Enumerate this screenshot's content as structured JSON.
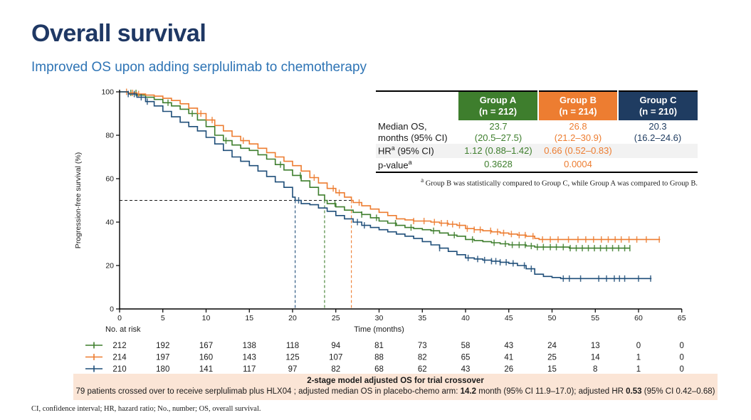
{
  "page": {
    "title": "Overall survival",
    "subtitle": "Improved OS upon adding serplulimab to chemotherapy",
    "abbrev_footnote": "CI, confidence interval; HR, hazard ratio; No., number; OS, overall survival."
  },
  "colors": {
    "title_navy": "#1F3864",
    "subtitle_blue": "#2E74B5",
    "group_a_green": "#3E7E2D",
    "group_b_orange": "#ED7D31",
    "group_c_navy_header": "#1F3C61",
    "group_c_curve_navy": "#1F4E79",
    "hr_row_bg": "#F2F2F2",
    "crossover_box_bg": "#FBE5D6"
  },
  "stats_table": {
    "marker": "a",
    "columns": [
      {
        "line1": "Group A",
        "line2": "(n = 212)"
      },
      {
        "line1": "Group B",
        "line2": "(n = 214)"
      },
      {
        "line1": "Group C",
        "line2": "(n = 210)"
      }
    ],
    "rows": {
      "median": {
        "label1": "Median OS,",
        "label2": "months (95% CI)",
        "values": [
          {
            "line1": "23.7",
            "line2": "(20.5–27.5)"
          },
          {
            "line1": "26.8",
            "line2": "(21.2–30.9)"
          },
          {
            "line1": "20.3",
            "line2": "(16.2–24.6)"
          }
        ]
      },
      "hr": {
        "label_pre": "HR",
        "label_post": " (95% CI)",
        "values": [
          "1.12 (0.88–1.42)",
          "0.66 (0.52–0.83)",
          ""
        ]
      },
      "p": {
        "label_pre": "p-value",
        "values": [
          "0.3628",
          "0.0004",
          ""
        ]
      }
    },
    "footnote": " Group B was statistically compared to Group C, while Group A was compared to Group B."
  },
  "crossover": {
    "title": "2-stage model adjusted OS for trial crossover",
    "seg1": "79 patients crossed over to receive serplulimab plus HLX04 ; adjusted median OS in placebo-chemo arm: ",
    "seg2": "14.2",
    "seg3": " month (95% CI 11.9–17.0); adjusted HR ",
    "seg4": "0.53",
    "seg5": " (95% CI 0.42–0.68)"
  },
  "chart_data": {
    "type": "line",
    "subtype": "kaplan-meier-step",
    "title": "",
    "xlabel": "Time (months)",
    "ylabel": "Progression-free survival (%)",
    "xlim": [
      0,
      65
    ],
    "ylim": [
      0,
      100
    ],
    "xticks": [
      0,
      5,
      10,
      15,
      20,
      25,
      30,
      35,
      40,
      45,
      50,
      55,
      60,
      65
    ],
    "yticks": [
      0,
      20,
      40,
      60,
      80,
      100
    ],
    "grid": false,
    "legend_position": "none",
    "median_reference": {
      "y_pct": 50,
      "dash_color": "#1a1a1a",
      "medians": [
        {
          "series": "Group C",
          "t": 20.3,
          "color": "#1F4E79"
        },
        {
          "series": "Group A",
          "t": 23.7,
          "color": "#3E7E2D"
        },
        {
          "series": "Group B",
          "t": 26.8,
          "color": "#ED7D31"
        }
      ]
    },
    "series": [
      {
        "name": "Group A (serplulimab arm A)",
        "color": "#3E7E2D",
        "points": [
          [
            0,
            100
          ],
          [
            1,
            99.5
          ],
          [
            2,
            98.5
          ],
          [
            3,
            97.5
          ],
          [
            4,
            96.5
          ],
          [
            5,
            95
          ],
          [
            6,
            93.5
          ],
          [
            7,
            92
          ],
          [
            8,
            90
          ],
          [
            9,
            87
          ],
          [
            10,
            84
          ],
          [
            11,
            80
          ],
          [
            12,
            77.5
          ],
          [
            13,
            75.5
          ],
          [
            14,
            74
          ],
          [
            15,
            73
          ],
          [
            16,
            71
          ],
          [
            17,
            69
          ],
          [
            18,
            66.5
          ],
          [
            19,
            64
          ],
          [
            20,
            61.5
          ],
          [
            21,
            59
          ],
          [
            22,
            56
          ],
          [
            23,
            52.5
          ],
          [
            23.7,
            50
          ],
          [
            24,
            48.5
          ],
          [
            25,
            47
          ],
          [
            26,
            45.5
          ],
          [
            27,
            44.5
          ],
          [
            28,
            43.5
          ],
          [
            29,
            42
          ],
          [
            30,
            40.5
          ],
          [
            31,
            39.5
          ],
          [
            32,
            38.5
          ],
          [
            33,
            37.5
          ],
          [
            34,
            37
          ],
          [
            35,
            36.5
          ],
          [
            36,
            36
          ],
          [
            37,
            35
          ],
          [
            38,
            34
          ],
          [
            39,
            33.5
          ],
          [
            40,
            32
          ],
          [
            41,
            31.5
          ],
          [
            42,
            31
          ],
          [
            43,
            30.5
          ],
          [
            44,
            30
          ],
          [
            45,
            29.5
          ],
          [
            46,
            29.5
          ],
          [
            47,
            29
          ],
          [
            48,
            28.5
          ],
          [
            50,
            28.5
          ],
          [
            52,
            28
          ],
          [
            59,
            28
          ]
        ],
        "censor_times": [
          1.3,
          1.9,
          5.6,
          8.4,
          12.3,
          18.6,
          20.9,
          24.9,
          28.0,
          29.7,
          31.9,
          33.7,
          36.3,
          38.7,
          40.8,
          43.3,
          44.6,
          45.4,
          46.2,
          46.9,
          47.6,
          48.3,
          49.0,
          49.8,
          50.5,
          51.3,
          52.1,
          52.8,
          53.5,
          54.2,
          54.9,
          55.6,
          56.3,
          57.0,
          57.7,
          58.4,
          59.0
        ]
      },
      {
        "name": "Group B (serplulimab arm B)",
        "color": "#ED7D31",
        "points": [
          [
            0,
            100
          ],
          [
            1,
            99.5
          ],
          [
            2,
            99
          ],
          [
            3,
            98.5
          ],
          [
            4,
            98
          ],
          [
            5,
            97
          ],
          [
            6,
            96
          ],
          [
            7,
            94.5
          ],
          [
            8,
            92.5
          ],
          [
            9,
            90
          ],
          [
            10,
            87
          ],
          [
            11,
            84.5
          ],
          [
            12,
            82
          ],
          [
            13,
            79.5
          ],
          [
            14,
            77.5
          ],
          [
            15,
            76
          ],
          [
            16,
            74
          ],
          [
            17,
            72
          ],
          [
            18,
            70
          ],
          [
            19,
            68
          ],
          [
            20,
            66
          ],
          [
            21,
            63.5
          ],
          [
            22,
            60.5
          ],
          [
            23,
            58
          ],
          [
            24,
            55.5
          ],
          [
            25,
            53.5
          ],
          [
            26,
            51.5
          ],
          [
            26.8,
            50
          ],
          [
            27,
            49
          ],
          [
            28,
            47.5
          ],
          [
            29,
            46
          ],
          [
            30,
            44.5
          ],
          [
            31,
            43
          ],
          [
            32,
            41.5
          ],
          [
            33,
            41
          ],
          [
            34,
            40.5
          ],
          [
            36,
            40
          ],
          [
            37,
            39.5
          ],
          [
            38,
            39
          ],
          [
            39,
            38.5
          ],
          [
            40,
            37
          ],
          [
            41,
            36.5
          ],
          [
            42,
            36
          ],
          [
            43,
            35.5
          ],
          [
            44,
            35
          ],
          [
            45,
            34.5
          ],
          [
            46,
            34
          ],
          [
            47,
            33.5
          ],
          [
            48,
            32.5
          ],
          [
            48.5,
            32
          ],
          [
            62.5,
            32
          ]
        ],
        "censor_times": [
          0.8,
          1.5,
          2.2,
          9.4,
          10.7,
          14.3,
          22.5,
          24.7,
          25.4,
          27.7,
          34.0,
          35.2,
          36.4,
          37.2,
          37.9,
          38.5,
          39.3,
          40.2,
          41.0,
          41.7,
          42.9,
          43.7,
          44.4,
          45.3,
          46.2,
          46.9,
          47.8,
          48.9,
          49.8,
          50.7,
          51.9,
          53.0,
          53.9,
          54.8,
          55.7,
          56.5,
          57.3,
          58.0,
          58.9,
          59.8,
          60.9,
          62.4
        ]
      },
      {
        "name": "Group C (placebo-chemo)",
        "color": "#1F4E79",
        "points": [
          [
            0,
            100
          ],
          [
            1,
            99
          ],
          [
            2,
            97.5
          ],
          [
            3,
            95.5
          ],
          [
            4,
            93.5
          ],
          [
            5,
            91
          ],
          [
            6,
            88.5
          ],
          [
            7,
            86
          ],
          [
            8,
            84
          ],
          [
            9,
            82
          ],
          [
            10,
            79
          ],
          [
            11,
            76
          ],
          [
            12,
            73
          ],
          [
            13,
            70
          ],
          [
            14,
            68
          ],
          [
            15,
            66
          ],
          [
            16,
            63.5
          ],
          [
            17,
            61
          ],
          [
            18,
            58.5
          ],
          [
            19,
            56
          ],
          [
            20,
            51.5
          ],
          [
            20.3,
            50
          ],
          [
            21,
            48.5
          ],
          [
            22,
            48
          ],
          [
            23,
            46.5
          ],
          [
            24,
            45
          ],
          [
            25,
            43
          ],
          [
            26,
            41.5
          ],
          [
            27,
            40
          ],
          [
            28,
            38.5
          ],
          [
            29,
            37.5
          ],
          [
            30,
            36.5
          ],
          [
            31,
            35.5
          ],
          [
            32,
            34.5
          ],
          [
            33,
            33.5
          ],
          [
            34,
            32.5
          ],
          [
            35,
            31
          ],
          [
            36,
            29.5
          ],
          [
            37,
            28
          ],
          [
            38,
            26.5
          ],
          [
            39,
            25
          ],
          [
            40,
            23.5
          ],
          [
            41,
            23
          ],
          [
            42,
            22.5
          ],
          [
            43,
            22
          ],
          [
            44,
            21.5
          ],
          [
            45,
            21
          ],
          [
            46,
            20
          ],
          [
            47,
            18.5
          ],
          [
            48,
            16
          ],
          [
            49,
            15
          ],
          [
            50,
            14.5
          ],
          [
            51,
            14
          ],
          [
            61.5,
            14
          ]
        ],
        "censor_times": [
          1.0,
          1.7,
          2.5,
          3.2,
          20.7,
          27.5,
          28.3,
          37.0,
          40.3,
          41.4,
          42.2,
          43.0,
          43.5,
          44.0,
          44.7,
          45.5,
          46.8,
          47.6,
          51.3,
          52.0,
          53.3,
          55.4,
          56.3,
          57.2,
          57.8,
          58.4,
          60.0,
          61.4
        ]
      }
    ],
    "at_risk": {
      "label": "No. at risk",
      "time_axis_label": "Time (months)",
      "times": [
        0,
        5,
        10,
        15,
        20,
        25,
        30,
        35,
        40,
        45,
        50,
        55,
        60,
        65
      ],
      "rows": [
        {
          "series": "Group A",
          "color": "#3E7E2D",
          "counts": [
            212,
            192,
            167,
            138,
            118,
            94,
            81,
            73,
            58,
            43,
            24,
            13,
            0,
            0
          ]
        },
        {
          "series": "Group B",
          "color": "#ED7D31",
          "counts": [
            214,
            197,
            160,
            143,
            125,
            107,
            88,
            82,
            65,
            41,
            25,
            14,
            1,
            0
          ]
        },
        {
          "series": "Group C",
          "color": "#1F4E79",
          "counts": [
            210,
            180,
            141,
            117,
            97,
            82,
            68,
            62,
            43,
            26,
            15,
            8,
            1,
            0
          ]
        }
      ]
    }
  }
}
